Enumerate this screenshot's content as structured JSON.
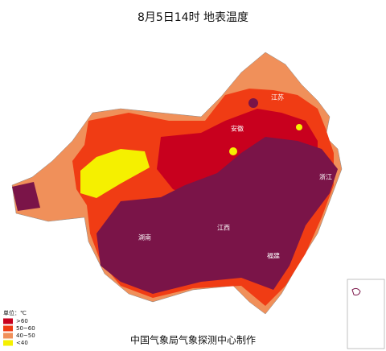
{
  "title": "8月5日14时  地表温度",
  "legend": {
    "unit": "单位：℃",
    "items": [
      {
        "label": ">60",
        "color": "#c8001e"
      },
      {
        "label": "50~60",
        "color": "#f03c14"
      },
      {
        "label": "40~50",
        "color": "#f0905a"
      },
      {
        "label": "<40",
        "color": "#f5f000"
      }
    ]
  },
  "regions": [
    {
      "label": "江苏"
    },
    {
      "label": "安徽"
    },
    {
      "label": "浙江"
    },
    {
      "label": "江西"
    },
    {
      "label": "湖南"
    },
    {
      "label": "福建"
    }
  ],
  "footer": "中国气象局气象探测中心制作"
}
